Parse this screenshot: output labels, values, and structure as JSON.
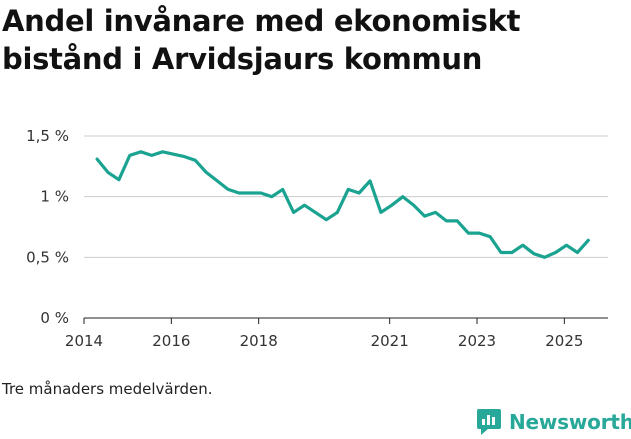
{
  "header": {
    "title": "Andel invånare med ekonomiskt bistånd i Arvidsjaurs kommun"
  },
  "footer": {
    "note": "Tre månaders medelvärden.",
    "brand": "Newsworthy"
  },
  "colors": {
    "line": "#1aa390",
    "grid": "#cccccc",
    "brand": "#27a898"
  },
  "chart_data": {
    "type": "line",
    "title": "Andel invånare med ekonomiskt bistånd i Arvidsjaurs kommun",
    "xlabel": "",
    "ylabel": "",
    "xlim": [
      2014,
      2026
    ],
    "ylim": [
      0,
      1.5
    ],
    "y_ticks": [
      {
        "value": 0,
        "label": "0 %"
      },
      {
        "value": 0.5,
        "label": "0,5 %"
      },
      {
        "value": 1,
        "label": "1 %"
      },
      {
        "value": 1.5,
        "label": "1,5 %"
      }
    ],
    "x_ticks": [
      {
        "value": 2014,
        "label": "2014"
      },
      {
        "value": 2016,
        "label": "2016"
      },
      {
        "value": 2018,
        "label": "2018"
      },
      {
        "value": 2021,
        "label": "2021"
      },
      {
        "value": 2023,
        "label": "2023"
      },
      {
        "value": 2025,
        "label": "2025"
      }
    ],
    "series": [
      {
        "name": "Andel invånare med ekonomiskt bistånd",
        "x": [
          2014.3,
          2014.55,
          2014.8,
          2015.05,
          2015.3,
          2015.55,
          2015.8,
          2016.05,
          2016.3,
          2016.55,
          2016.8,
          2017.05,
          2017.3,
          2017.55,
          2017.8,
          2018.05,
          2018.3,
          2018.55,
          2018.8,
          2019.05,
          2019.3,
          2019.55,
          2019.8,
          2020.05,
          2020.3,
          2020.55,
          2020.8,
          2021.05,
          2021.3,
          2021.55,
          2021.8,
          2022.05,
          2022.3,
          2022.55,
          2022.8,
          2023.05,
          2023.3,
          2023.55,
          2023.8,
          2024.05,
          2024.3,
          2024.55,
          2024.8,
          2025.05,
          2025.3,
          2025.55
        ],
        "values": [
          1.31,
          1.2,
          1.14,
          1.34,
          1.37,
          1.34,
          1.37,
          1.35,
          1.33,
          1.3,
          1.2,
          1.13,
          1.06,
          1.03,
          1.03,
          1.03,
          1.0,
          1.06,
          0.87,
          0.93,
          0.87,
          0.81,
          0.87,
          1.06,
          1.03,
          1.13,
          0.87,
          0.93,
          1.0,
          0.93,
          0.84,
          0.87,
          0.8,
          0.8,
          0.7,
          0.7,
          0.67,
          0.54,
          0.54,
          0.6,
          0.53,
          0.5,
          0.54,
          0.6,
          0.54,
          0.64
        ]
      }
    ]
  }
}
